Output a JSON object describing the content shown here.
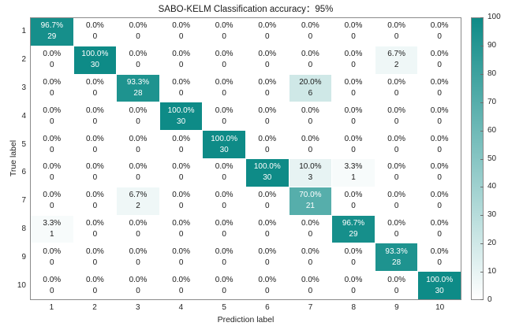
{
  "chart_data": {
    "type": "heatmap",
    "title": "SABO-KELM Classification accuracy：95%",
    "xlabel": "Prediction label",
    "ylabel": "True label",
    "x_categories": [
      "1",
      "2",
      "3",
      "4",
      "5",
      "6",
      "7",
      "8",
      "9",
      "10"
    ],
    "y_categories": [
      "1",
      "2",
      "3",
      "4",
      "5",
      "6",
      "7",
      "8",
      "9",
      "10"
    ],
    "percent": [
      [
        96.7,
        0.0,
        0.0,
        0.0,
        0.0,
        0.0,
        0.0,
        0.0,
        0.0,
        0.0
      ],
      [
        0.0,
        100.0,
        0.0,
        0.0,
        0.0,
        0.0,
        0.0,
        0.0,
        6.7,
        0.0
      ],
      [
        0.0,
        0.0,
        93.3,
        0.0,
        0.0,
        0.0,
        20.0,
        0.0,
        0.0,
        0.0
      ],
      [
        0.0,
        0.0,
        0.0,
        100.0,
        0.0,
        0.0,
        0.0,
        0.0,
        0.0,
        0.0
      ],
      [
        0.0,
        0.0,
        0.0,
        0.0,
        100.0,
        0.0,
        0.0,
        0.0,
        0.0,
        0.0
      ],
      [
        0.0,
        0.0,
        0.0,
        0.0,
        0.0,
        100.0,
        10.0,
        3.3,
        0.0,
        0.0
      ],
      [
        0.0,
        0.0,
        6.7,
        0.0,
        0.0,
        0.0,
        70.0,
        0.0,
        0.0,
        0.0
      ],
      [
        3.3,
        0.0,
        0.0,
        0.0,
        0.0,
        0.0,
        0.0,
        96.7,
        0.0,
        0.0
      ],
      [
        0.0,
        0.0,
        0.0,
        0.0,
        0.0,
        0.0,
        0.0,
        0.0,
        93.3,
        0.0
      ],
      [
        0.0,
        0.0,
        0.0,
        0.0,
        0.0,
        0.0,
        0.0,
        0.0,
        0.0,
        100.0
      ]
    ],
    "counts": [
      [
        29,
        0,
        0,
        0,
        0,
        0,
        0,
        0,
        0,
        0
      ],
      [
        0,
        30,
        0,
        0,
        0,
        0,
        0,
        0,
        2,
        0
      ],
      [
        0,
        0,
        28,
        0,
        0,
        0,
        6,
        0,
        0,
        0
      ],
      [
        0,
        0,
        0,
        30,
        0,
        0,
        0,
        0,
        0,
        0
      ],
      [
        0,
        0,
        0,
        0,
        30,
        0,
        0,
        0,
        0,
        0
      ],
      [
        0,
        0,
        0,
        0,
        0,
        30,
        3,
        1,
        0,
        0
      ],
      [
        0,
        0,
        2,
        0,
        0,
        0,
        21,
        0,
        0,
        0
      ],
      [
        1,
        0,
        0,
        0,
        0,
        0,
        0,
        29,
        0,
        0
      ],
      [
        0,
        0,
        0,
        0,
        0,
        0,
        0,
        0,
        28,
        0
      ],
      [
        0,
        0,
        0,
        0,
        0,
        0,
        0,
        0,
        0,
        30
      ]
    ],
    "colorbar": {
      "min": 0,
      "max": 100,
      "ticks": [
        0,
        10,
        20,
        30,
        40,
        50,
        60,
        70,
        80,
        90,
        100
      ]
    },
    "colors": {
      "high": "#0e8b87",
      "low": "#ffffff",
      "dark_text": "#1a1a1a",
      "light_text": "#ffffff"
    },
    "legend_position": "right",
    "grid": true
  }
}
